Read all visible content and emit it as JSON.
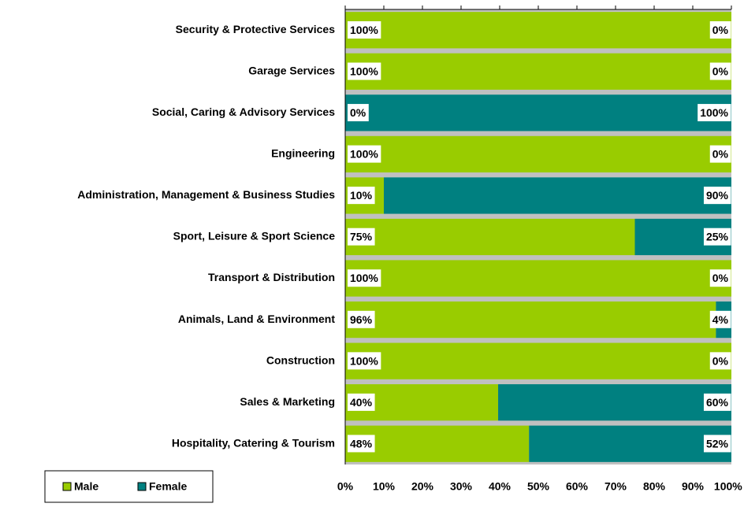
{
  "chart_data": {
    "type": "stacked-bar-horizontal",
    "categories": [
      "Security & Protective Services",
      "Garage Services",
      "Social, Caring & Advisory Services",
      "Engineering",
      "Administration, Management  & Business Studies",
      "Sport, Leisure & Sport Science",
      "Transport & Distribution",
      "Animals, Land & Environment",
      "Construction",
      "Sales & Marketing",
      "Hospitality, Catering & Tourism"
    ],
    "series": [
      {
        "name": "Male",
        "color": "#99cc00",
        "values": [
          100,
          100,
          0,
          100,
          10,
          75,
          100,
          96,
          100,
          39.6,
          47.6
        ],
        "value_labels": [
          "100%",
          "100%",
          "0%",
          "100%",
          "10%",
          "75%",
          "100%",
          "96%",
          "100%",
          "40%",
          "48%"
        ]
      },
      {
        "name": "Female",
        "color": "#008080",
        "values": [
          0,
          0,
          100,
          0,
          90,
          25,
          0,
          4,
          0,
          60.4,
          52.4
        ],
        "value_labels": [
          "0%",
          "0%",
          "100%",
          "0%",
          "90%",
          "25%",
          "0%",
          "4%",
          "0%",
          "60%",
          "52%"
        ]
      }
    ],
    "xlim": [
      0,
      100
    ],
    "xticks": [
      {
        "value": 0,
        "label": "0%"
      },
      {
        "value": 10,
        "label": "10%"
      },
      {
        "value": 20,
        "label": "20%"
      },
      {
        "value": 30,
        "label": "30%"
      },
      {
        "value": 40,
        "label": "40%"
      },
      {
        "value": 50,
        "label": "50%"
      },
      {
        "value": 60,
        "label": "60%"
      },
      {
        "value": 70,
        "label": "70%"
      },
      {
        "value": 80,
        "label": "80%"
      },
      {
        "value": 90,
        "label": "90%"
      },
      {
        "value": 100,
        "label": "100%"
      }
    ],
    "legend": "bottom-left"
  }
}
